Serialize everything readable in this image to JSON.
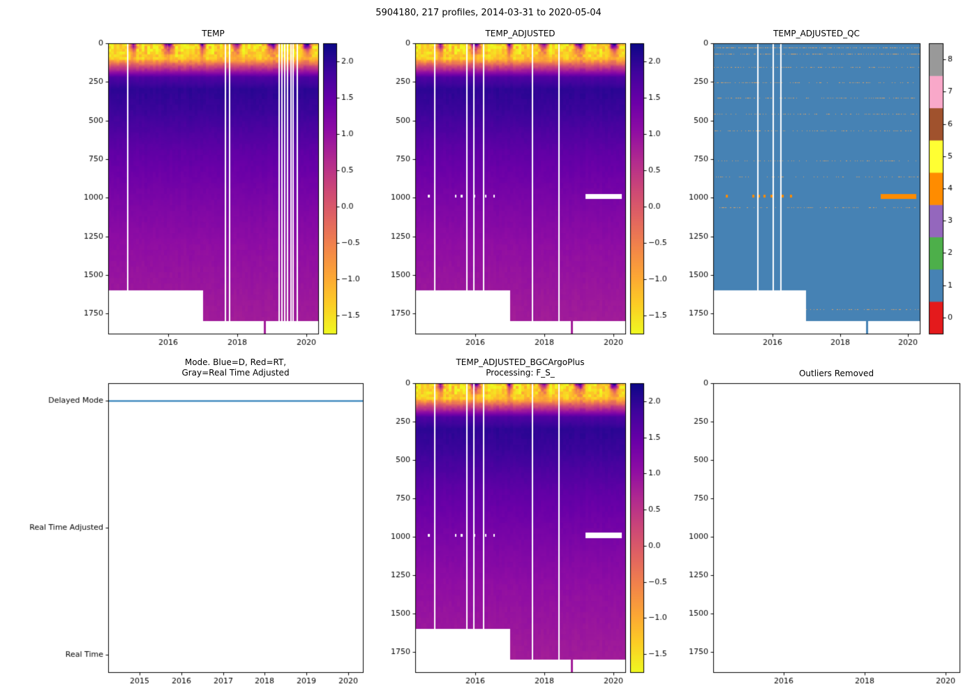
{
  "figure": {
    "title": "5904180, 217 profiles, 2014-03-31 to 2020-05-04"
  },
  "colors": {
    "background": "#ffffff",
    "axes": "#000000",
    "mode_line": "#1f77b4",
    "qc_sparse_dots": "#d8a26a"
  },
  "chart_data": [
    {
      "id": "temp",
      "type": "heatmap",
      "title": "TEMP",
      "x_range": [
        2014.25,
        2020.35
      ],
      "x_ticks": [
        2016,
        2018,
        2020
      ],
      "y_range_dbar": [
        0,
        1880
      ],
      "y_ticks": [
        0,
        250,
        500,
        750,
        1000,
        1250,
        1500,
        1750
      ],
      "y_inverted": true,
      "colormap": "plasma_reversed",
      "value_range_degC": [
        -1.75,
        2.25
      ],
      "colorbar_ticks": [
        2.0,
        1.5,
        1.0,
        0.5,
        0.0,
        -0.5,
        -1.0,
        -1.5
      ],
      "depth_temp_profile": {
        "depth_dbar": [
          0,
          100,
          150,
          220,
          300,
          450,
          700,
          1000,
          1300,
          1600,
          1880
        ],
        "temp_degC": [
          -1.55,
          -1.3,
          0.2,
          1.7,
          2.0,
          1.88,
          1.55,
          1.28,
          1.05,
          0.92,
          0.8
        ]
      },
      "seasonal_surface": {
        "summer_peak_degC": 2.1,
        "winter_degC": -1.55,
        "decay_depth_dbar": 40
      },
      "profile_depth_limit": {
        "before_2017": 1600,
        "from_2017": 1800
      },
      "deep_spike_year": 2018.8,
      "missing_profile_years": [
        2014.8,
        2017.63,
        2017.76,
        2019.2,
        2019.28,
        2019.36,
        2019.44,
        2019.53,
        2019.61,
        2019.73
      ]
    },
    {
      "id": "temp_adjusted",
      "type": "heatmap",
      "title": "TEMP_ADJUSTED",
      "x_range": [
        2014.25,
        2020.35
      ],
      "x_ticks": [
        2016,
        2018,
        2020
      ],
      "y_range_dbar": [
        0,
        1880
      ],
      "y_ticks": [
        0,
        250,
        500,
        750,
        1000,
        1250,
        1500,
        1750
      ],
      "y_inverted": true,
      "colormap": "plasma_reversed",
      "value_range_degC": [
        -1.75,
        2.25
      ],
      "colorbar_ticks": [
        2.0,
        1.5,
        1.0,
        0.5,
        0.0,
        -0.5,
        -1.0,
        -1.5
      ],
      "depth_temp_profile": {
        "depth_dbar": [
          0,
          100,
          150,
          220,
          300,
          450,
          700,
          1000,
          1300,
          1600,
          1880
        ],
        "temp_degC": [
          -1.55,
          -1.3,
          0.2,
          1.7,
          2.0,
          1.88,
          1.55,
          1.28,
          1.05,
          0.92,
          0.8
        ]
      },
      "seasonal_surface": {
        "summer_peak_degC": 2.1,
        "winter_degC": -1.55,
        "decay_depth_dbar": 40
      },
      "profile_depth_limit": {
        "before_2017": 1600,
        "from_2017": 1800
      },
      "deep_spike_year": 2018.8,
      "missing_profile_years": [
        2014.8,
        2015.73,
        2015.93,
        2016.22,
        2017.63,
        2018.4
      ],
      "masked_bar": {
        "depth_dbar": 990,
        "from_year": 2019.2,
        "to_year": 2020.25
      },
      "masked_dot_years": [
        2014.62,
        2015.4,
        2015.57,
        2015.73,
        2015.94,
        2016.27,
        2016.52
      ]
    },
    {
      "id": "temp_adjusted_qc",
      "type": "heatmap",
      "title": "TEMP_ADJUSTED_QC",
      "x_range": [
        2014.25,
        2020.35
      ],
      "x_ticks": [
        2016,
        2018,
        2020
      ],
      "y_range_dbar": [
        0,
        1880
      ],
      "y_ticks": [
        0,
        250,
        500,
        750,
        1000,
        1250,
        1500,
        1750
      ],
      "y_inverted": true,
      "flag_scale": {
        "ticks": [
          0,
          1,
          2,
          3,
          4,
          5,
          6,
          7,
          8
        ],
        "colors": [
          "#e41a1c",
          "#4682b4",
          "#4daf4a",
          "#9467bd",
          "#ff8c00",
          "#ffff33",
          "#a0522d",
          "#f9a8c9",
          "#999999"
        ]
      },
      "dominant_flag": 1,
      "flag4_bar": {
        "depth_dbar": 990,
        "from_year": 2019.2,
        "to_year": 2020.25
      },
      "flag4_dot_years": [
        2014.62,
        2015.4,
        2015.57,
        2015.73,
        2015.94,
        2016.27,
        2016.52
      ],
      "sparse_dot_rows": [
        {
          "depth_dbar": 25,
          "density": 0.5
        },
        {
          "depth_dbar": 68,
          "density": 0.5
        },
        {
          "depth_dbar": 154,
          "density": 0.3
        },
        {
          "depth_dbar": 253,
          "density": 0.3
        },
        {
          "depth_dbar": 352,
          "density": 0.3
        },
        {
          "depth_dbar": 456,
          "density": 0.3
        },
        {
          "depth_dbar": 565,
          "density": 0.25
        },
        {
          "depth_dbar": 759,
          "density": 0.25
        },
        {
          "depth_dbar": 863,
          "density": 0.2
        },
        {
          "depth_dbar": 1062,
          "density": 0.25
        },
        {
          "depth_dbar": 1722,
          "density": 0.3
        }
      ],
      "profile_depth_limit": {
        "before_2017": 1600,
        "from_2017": 1800
      },
      "deep_spike_year": 2018.8,
      "missing_profile_years": [
        2015.55,
        2016.0,
        2016.23
      ]
    },
    {
      "id": "mode",
      "type": "line",
      "title": "Mode. Blue=D, Red=RT,\nGray=Real Time Adjusted",
      "x_range": [
        2014.25,
        2020.35
      ],
      "x_ticks": [
        2015,
        2016,
        2017,
        2018,
        2019,
        2020
      ],
      "y_categories": [
        "Real Time",
        "Real Time Adjusted",
        "Delayed Mode"
      ],
      "series": [
        {
          "name": "Mode",
          "color": "#1f77b4",
          "value": "Delayed Mode",
          "from_year": 2014.25,
          "to_year": 2020.35
        }
      ]
    },
    {
      "id": "temp_adjusted_bgcargoplus",
      "type": "heatmap",
      "title": "TEMP_ADJUSTED_BGCArgoPlus\nProcessing: F_S_",
      "x_range": [
        2014.25,
        2020.35
      ],
      "x_ticks": [
        2016,
        2018,
        2020
      ],
      "y_range_dbar": [
        0,
        1880
      ],
      "y_ticks": [
        0,
        250,
        500,
        750,
        1000,
        1250,
        1500,
        1750
      ],
      "y_inverted": true,
      "colormap": "plasma_reversed",
      "value_range_degC": [
        -1.75,
        2.25
      ],
      "colorbar_ticks": [
        2.0,
        1.5,
        1.0,
        0.5,
        0.0,
        -0.5,
        -1.0,
        -1.5
      ],
      "depth_temp_profile": {
        "depth_dbar": [
          0,
          100,
          150,
          220,
          300,
          450,
          700,
          1000,
          1300,
          1600,
          1880
        ],
        "temp_degC": [
          -1.55,
          -1.3,
          0.2,
          1.7,
          2.0,
          1.88,
          1.55,
          1.28,
          1.05,
          0.92,
          0.8
        ]
      },
      "seasonal_surface": {
        "summer_peak_degC": 2.1,
        "winter_degC": -1.55,
        "decay_depth_dbar": 40
      },
      "profile_depth_limit": {
        "before_2017": 1600,
        "from_2017": 1800
      },
      "deep_spike_year": 2018.8,
      "missing_profile_years": [
        2014.8,
        2015.73,
        2015.93,
        2016.22,
        2017.63,
        2018.4
      ],
      "masked_bar": {
        "depth_dbar": 990,
        "from_year": 2019.2,
        "to_year": 2020.25
      },
      "masked_dot_years": [
        2014.62,
        2015.4,
        2015.57,
        2015.73,
        2015.94,
        2016.27,
        2016.52
      ]
    },
    {
      "id": "outliers_removed",
      "type": "empty",
      "title": "Outliers Removed",
      "x_range": [
        2014.25,
        2020.35
      ],
      "x_ticks": [
        2016,
        2018,
        2020
      ],
      "y_range_dbar": [
        0,
        1880
      ],
      "y_ticks": [
        0,
        250,
        500,
        750,
        1000,
        1250,
        1500,
        1750
      ],
      "y_inverted": true
    }
  ]
}
